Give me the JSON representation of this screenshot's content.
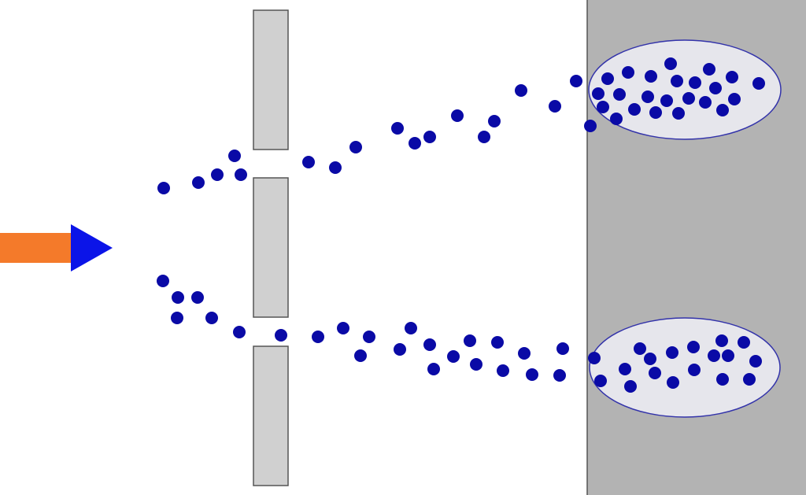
{
  "diagram": {
    "description_text": "",
    "colors": {
      "background": "#ffffff",
      "screen": "#b3b3b3",
      "screen_edge": "#555555",
      "slit_barrier": "#d0d0d0",
      "slit_barrier_edge": "#555555",
      "source_shaft": "#f47a2a",
      "source_head": "#0b14e8",
      "particle": "#0a0aa6",
      "cluster_fill": "#e6e6ec",
      "cluster_edge": "#3333aa"
    },
    "icons": {
      "source": "arrow-right-icon",
      "particle": "dot-icon"
    },
    "barrier_segments": 3,
    "slits": 2,
    "impact_clusters": 2
  }
}
